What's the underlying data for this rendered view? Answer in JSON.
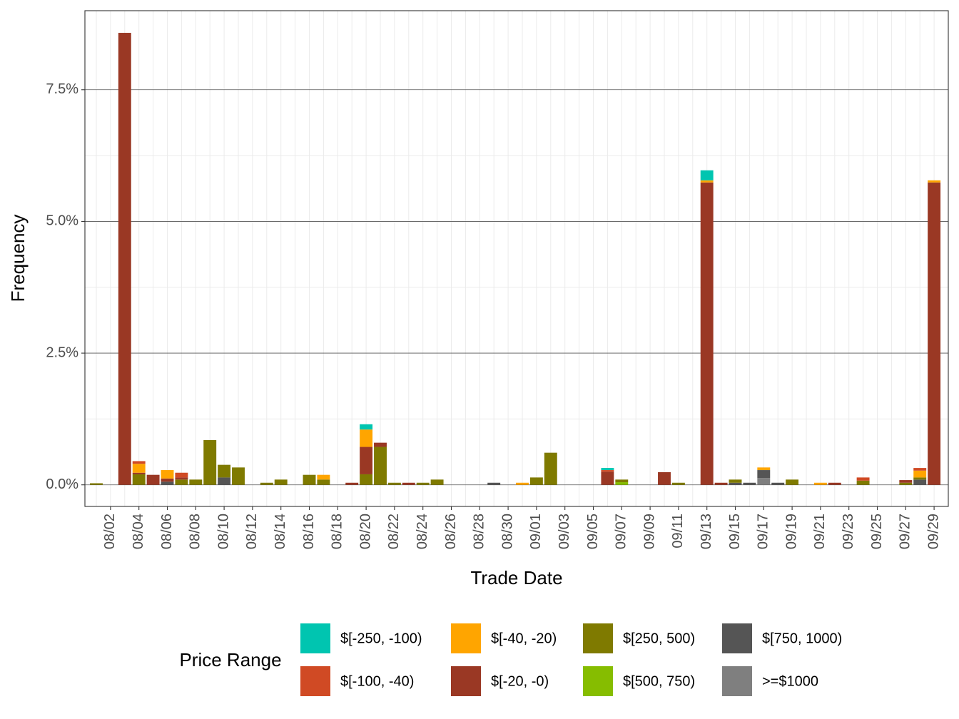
{
  "chart_data": {
    "type": "stacked_bar",
    "x_label": "Trade Date",
    "y_label": "Frequency",
    "legend_title": "Price Range",
    "categories": [
      null,
      "08/02",
      null,
      "08/04",
      null,
      "08/06",
      null,
      "08/08",
      null,
      "08/10",
      null,
      "08/12",
      null,
      "08/14",
      null,
      "08/16",
      null,
      "08/18",
      null,
      "08/20",
      null,
      "08/22",
      null,
      "08/24",
      null,
      "08/26",
      null,
      "08/28",
      null,
      "08/30",
      null,
      "09/01",
      null,
      "09/03",
      null,
      "09/05",
      null,
      "09/07",
      null,
      "09/09",
      null,
      "09/11",
      null,
      "09/13",
      null,
      "09/15",
      null,
      "09/17",
      null,
      "09/19",
      null,
      "09/21",
      null,
      "09/23",
      null,
      "09/25",
      null,
      "09/27",
      null,
      "09/29"
    ],
    "ylim": [
      -0.41,
      9.0
    ],
    "yticks": [
      {
        "value": 0,
        "label": "0.0%"
      },
      {
        "value": 2.5,
        "label": "2.5%"
      },
      {
        "value": 5,
        "label": "5.0%"
      },
      {
        "value": 7.5,
        "label": "7.5%"
      }
    ],
    "grid": true,
    "series": [
      {
        "name": "$[-250, -100)",
        "color": "#00C5B0",
        "values": [
          0,
          0,
          0,
          0,
          0,
          0,
          0,
          0,
          0,
          0,
          0,
          0,
          0,
          0,
          0,
          0,
          0,
          0,
          0,
          0.1,
          0,
          0,
          0,
          0,
          0,
          0,
          0,
          0,
          0,
          0,
          0,
          0,
          0,
          0,
          0,
          0,
          0.04,
          0,
          0,
          0,
          0,
          0,
          0,
          0.19,
          0,
          0,
          0,
          0,
          0,
          0,
          0,
          0,
          0,
          0,
          0,
          0,
          0,
          0,
          0,
          0
        ]
      },
      {
        "name": "$[-100, -40)",
        "color": "#D04A24",
        "values": [
          0,
          0,
          0,
          0.05,
          0,
          0,
          0.09,
          0,
          0,
          0,
          0,
          0,
          0,
          0,
          0,
          0,
          0,
          0,
          0,
          0,
          0,
          0,
          0,
          0,
          0,
          0,
          0,
          0,
          0,
          0,
          0,
          0,
          0,
          0,
          0,
          0,
          0.03,
          0,
          0,
          0,
          0,
          0,
          0,
          0,
          0,
          0,
          0,
          0,
          0,
          0,
          0,
          0,
          0,
          0,
          0.06,
          0,
          0,
          0,
          0.05,
          0
        ]
      },
      {
        "name": "$[-40, -20)",
        "color": "#FFA500",
        "values": [
          0,
          0,
          0,
          0.17,
          0,
          0.16,
          0,
          0,
          0,
          0,
          0,
          0,
          0,
          0,
          0,
          0,
          0.09,
          0,
          0,
          0.33,
          0,
          0,
          0,
          0,
          0,
          0,
          0,
          0,
          0,
          0,
          0.04,
          0,
          0,
          0,
          0,
          0,
          0,
          0,
          0,
          0,
          0,
          0,
          0,
          0.04,
          0,
          0,
          0,
          0.05,
          0,
          0,
          0,
          0.04,
          0,
          0,
          0,
          0,
          0,
          0,
          0.13,
          0.04
        ]
      },
      {
        "name": "$[-20, -0)",
        "color": "#9A3824",
        "values": [
          0,
          0,
          8.58,
          0.03,
          0.19,
          0.06,
          0.04,
          0,
          0,
          0,
          0,
          0,
          0,
          0,
          0,
          0,
          0,
          0,
          0.04,
          0.52,
          0.08,
          0,
          0.04,
          0,
          0,
          0,
          0,
          0,
          0,
          0,
          0,
          0,
          0,
          0,
          0,
          0,
          0.25,
          0,
          0,
          0,
          0.24,
          0,
          0,
          5.74,
          0.04,
          0,
          0,
          0,
          0,
          0,
          0,
          0,
          0.04,
          0,
          0,
          0,
          0,
          0.05,
          0,
          5.74
        ]
      },
      {
        "name": "$[250, 500)",
        "color": "#7F7A00",
        "values": [
          0.03,
          0,
          0,
          0.2,
          0,
          0,
          0.1,
          0.1,
          0.85,
          0.24,
          0.33,
          0,
          0.04,
          0.1,
          0,
          0.19,
          0.1,
          0,
          0,
          0.2,
          0.72,
          0.04,
          0,
          0.04,
          0.1,
          0,
          0,
          0,
          0,
          0,
          0,
          0.14,
          0.61,
          0,
          0,
          0,
          0,
          0.05,
          0,
          0,
          0,
          0.04,
          0,
          0,
          0,
          0.06,
          0,
          0,
          0,
          0.1,
          0,
          0,
          0,
          0,
          0.08,
          0,
          0,
          0.04,
          0.04,
          0
        ]
      },
      {
        "name": "$[500, 750)",
        "color": "#86BD00",
        "values": [
          0,
          0,
          0,
          0,
          0,
          0,
          0,
          0,
          0,
          0,
          0,
          0,
          0,
          0,
          0,
          0,
          0,
          0,
          0,
          0,
          0,
          0,
          0,
          0,
          0,
          0,
          0,
          0,
          0,
          0,
          0,
          0,
          0,
          0,
          0,
          0,
          0,
          0.05,
          0,
          0,
          0,
          0,
          0,
          0,
          0,
          0,
          0,
          0,
          0,
          0,
          0,
          0,
          0,
          0,
          0,
          0,
          0,
          0,
          0,
          0
        ]
      },
      {
        "name": "$[750, 1000)",
        "color": "#555555",
        "values": [
          0,
          0,
          0,
          0,
          0,
          0.06,
          0,
          0,
          0,
          0.14,
          0,
          0,
          0,
          0,
          0,
          0,
          0,
          0,
          0,
          0,
          0,
          0,
          0,
          0,
          0,
          0,
          0,
          0,
          0.04,
          0,
          0,
          0,
          0,
          0,
          0,
          0,
          0,
          0,
          0,
          0,
          0,
          0,
          0,
          0,
          0,
          0.04,
          0.04,
          0.15,
          0.04,
          0,
          0,
          0,
          0,
          0,
          0,
          0,
          0,
          0,
          0.1,
          0
        ]
      },
      {
        "name": ">=$1000",
        "color": "#7F7F7F",
        "values": [
          0,
          0,
          0,
          0,
          0,
          0,
          0,
          0,
          0,
          0,
          0,
          0,
          0,
          0,
          0,
          0,
          0,
          0,
          0,
          0,
          0,
          0,
          0,
          0,
          0,
          0,
          0,
          0,
          0,
          0,
          0,
          0,
          0,
          0,
          0,
          0,
          0,
          0,
          0,
          0,
          0,
          0,
          0,
          0,
          0,
          0,
          0,
          0.13,
          0,
          0,
          0,
          0,
          0,
          0,
          0,
          0,
          0,
          0,
          0,
          0
        ]
      }
    ]
  }
}
